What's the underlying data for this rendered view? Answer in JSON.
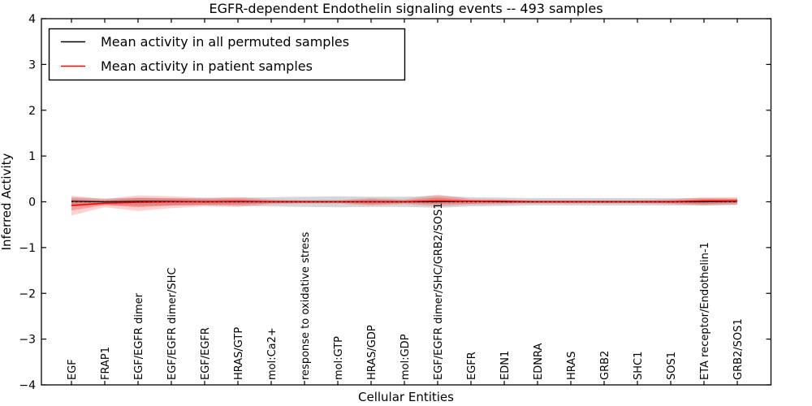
{
  "chart_data": {
    "type": "line",
    "title": "EGFR-dependent Endothelin signaling events -- 493 samples",
    "xlabel": "Cellular Entities",
    "ylabel": "Inferred Activity",
    "ylim": [
      -4,
      4
    ],
    "ytick_values": [
      -4,
      -3,
      -2,
      -1,
      0,
      1,
      2,
      3,
      4
    ],
    "ytick_labels": [
      "−4",
      "−3",
      "−2",
      "−1",
      "0",
      "1",
      "2",
      "3",
      "4"
    ],
    "grid": false,
    "legend_position": "upper left",
    "categories": [
      "EGF",
      "FRAP1",
      "EGF/EGFR dimer",
      "EGF/EGFR dimer/SHC",
      "EGF/EGFR",
      "HRAS/GTP",
      "mol:Ca2+",
      "response to oxidative stress",
      "mol:GTP",
      "HRAS/GDP",
      "mol:GDP",
      "EGF/EGFR dimer/SHC/GRB2/SOS1",
      "EGFR",
      "EDN1",
      "EDNRA",
      "HRAS",
      "GRB2",
      "SHC1",
      "SOS1",
      "ETA receptor/Endothelin-1",
      "GRB2/SOS1"
    ],
    "legend": [
      {
        "label": "Mean activity in all permuted samples",
        "color": "#000000"
      },
      {
        "label": "Mean activity in patient samples",
        "color": "#ff0000"
      }
    ],
    "series": [
      {
        "name": "mean-permuted",
        "color": "#000000",
        "linestyle": "solid",
        "width": 1.2,
        "values": [
          0.01,
          0.0,
          0.01,
          0.01,
          0.0,
          0.0,
          0.0,
          0.0,
          0.0,
          0.0,
          0.0,
          0.0,
          0.01,
          0.0,
          0.0,
          0.0,
          0.0,
          0.0,
          0.0,
          0.0,
          0.01
        ]
      },
      {
        "name": "mean-patient",
        "color": "#ff0000",
        "linestyle": "solid",
        "width": 1.6,
        "values": [
          -0.08,
          -0.03,
          -0.01,
          0.0,
          0.0,
          0.01,
          0.0,
          0.0,
          0.0,
          0.0,
          0.0,
          0.02,
          0.01,
          0.01,
          0.0,
          0.0,
          0.0,
          0.0,
          0.0,
          0.02,
          0.02
        ]
      },
      {
        "name": "zero-baseline",
        "color": "#000000",
        "linestyle": "dotted",
        "width": 1.2,
        "values": [
          0,
          0,
          0,
          0,
          0,
          0,
          0,
          0,
          0,
          0,
          0,
          0,
          0,
          0,
          0,
          0,
          0,
          0,
          0,
          0,
          0
        ]
      }
    ],
    "bands": [
      {
        "name": "permuted-spread",
        "color": "#999999",
        "opacity": 0.4,
        "upper": [
          0.1,
          0.07,
          0.09,
          0.08,
          0.08,
          0.09,
          0.1,
          0.11,
          0.12,
          0.11,
          0.11,
          0.13,
          0.1,
          0.09,
          0.08,
          0.08,
          0.08,
          0.08,
          0.08,
          0.08,
          0.07
        ],
        "lower": [
          -0.1,
          -0.07,
          -0.09,
          -0.08,
          -0.08,
          -0.09,
          -0.1,
          -0.11,
          -0.12,
          -0.11,
          -0.11,
          -0.13,
          -0.1,
          -0.09,
          -0.08,
          -0.08,
          -0.08,
          -0.08,
          -0.08,
          -0.08,
          -0.07
        ]
      },
      {
        "name": "patient-spread-outer",
        "color": "#ff0000",
        "opacity": 0.18,
        "upper": [
          0.13,
          0.06,
          0.14,
          0.12,
          0.09,
          0.1,
          0.05,
          0.04,
          0.04,
          0.08,
          0.05,
          0.16,
          0.06,
          0.05,
          0.04,
          0.04,
          0.04,
          0.04,
          0.05,
          0.1,
          0.1
        ],
        "lower": [
          -0.3,
          -0.12,
          -0.2,
          -0.14,
          -0.1,
          -0.11,
          -0.05,
          -0.04,
          -0.04,
          -0.08,
          -0.05,
          -0.1,
          -0.06,
          -0.05,
          -0.04,
          -0.04,
          -0.04,
          -0.04,
          -0.05,
          -0.08,
          -0.06
        ]
      },
      {
        "name": "patient-spread-inner",
        "color": "#ff0000",
        "opacity": 0.25,
        "upper": [
          0.06,
          0.03,
          0.08,
          0.07,
          0.05,
          0.06,
          0.03,
          0.02,
          0.02,
          0.05,
          0.03,
          0.09,
          0.04,
          0.03,
          0.02,
          0.02,
          0.02,
          0.02,
          0.03,
          0.06,
          0.06
        ],
        "lower": [
          -0.19,
          -0.07,
          -0.12,
          -0.08,
          -0.06,
          -0.06,
          -0.03,
          -0.02,
          -0.02,
          -0.05,
          -0.03,
          -0.05,
          -0.04,
          -0.03,
          -0.02,
          -0.02,
          -0.02,
          -0.02,
          -0.03,
          -0.05,
          -0.03
        ]
      }
    ]
  }
}
